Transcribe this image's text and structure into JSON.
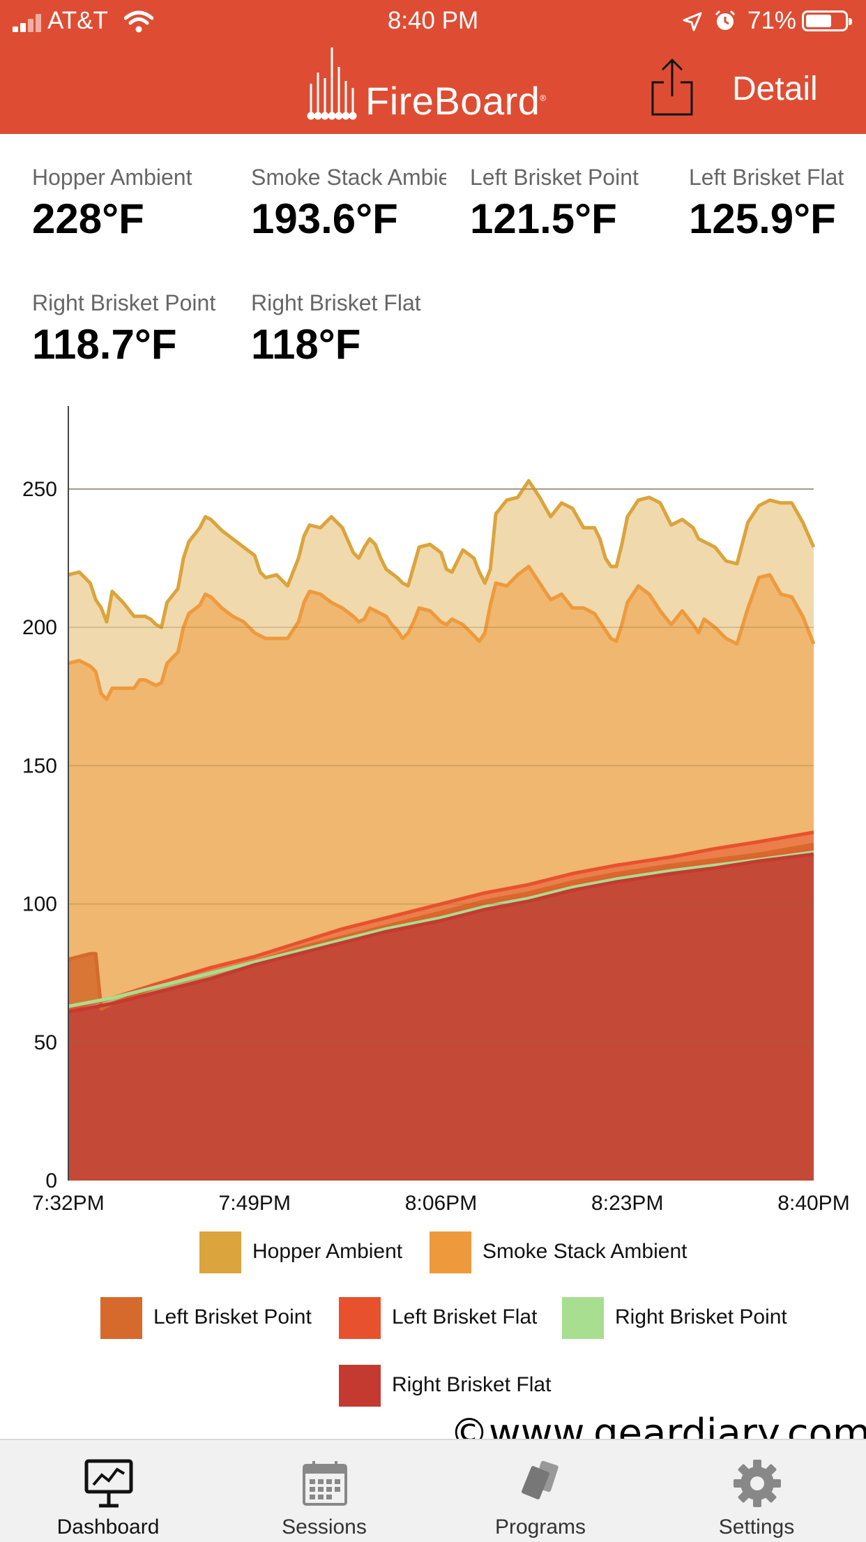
{
  "status_bar": {
    "carrier": "AT&T",
    "time": "8:40 PM",
    "battery": "71%"
  },
  "header": {
    "brand": "FireBoard",
    "detail_label": "Detail"
  },
  "readings": [
    {
      "name": "Hopper Ambient",
      "value": "228°F"
    },
    {
      "name": "Smoke Stack Ambient",
      "value": "193.6°F"
    },
    {
      "name": "Left Brisket Point",
      "value": "121.5°F"
    },
    {
      "name": "Left Brisket Flat",
      "value": "125.9°F"
    },
    {
      "name": "Right Brisket Point",
      "value": "118.7°F"
    },
    {
      "name": "Right Brisket Flat",
      "value": "118°F"
    }
  ],
  "chart_data": {
    "type": "area",
    "ylim": [
      0,
      280
    ],
    "yticks": [
      "0",
      "50",
      "100",
      "150",
      "200",
      "250"
    ],
    "x_labels": [
      "7:32PM",
      "7:49PM",
      "8:06PM",
      "8:23PM",
      "8:40PM"
    ],
    "x_range_minutes": [
      0,
      68
    ],
    "legend_placement": "bottom",
    "series": [
      {
        "name": "Hopper Ambient",
        "color": "#dba43c",
        "values": [
          [
            0,
            219
          ],
          [
            1,
            220
          ],
          [
            2,
            216
          ],
          [
            2.5,
            210
          ],
          [
            3,
            207
          ],
          [
            3.5,
            202
          ],
          [
            4,
            213
          ],
          [
            5,
            209
          ],
          [
            6,
            204
          ],
          [
            7,
            204
          ],
          [
            7.5,
            203
          ],
          [
            8,
            201
          ],
          [
            8.5,
            200
          ],
          [
            9,
            209
          ],
          [
            10,
            214
          ],
          [
            10.5,
            225
          ],
          [
            11,
            231
          ],
          [
            12,
            236
          ],
          [
            12.5,
            240
          ],
          [
            13,
            239
          ],
          [
            14,
            235
          ],
          [
            15,
            232
          ],
          [
            16,
            229
          ],
          [
            17,
            226
          ],
          [
            17.5,
            220
          ],
          [
            18,
            218
          ],
          [
            19,
            219
          ],
          [
            20,
            215
          ],
          [
            21,
            225
          ],
          [
            21.5,
            233
          ],
          [
            22,
            237
          ],
          [
            23,
            236
          ],
          [
            23.5,
            238
          ],
          [
            24,
            240
          ],
          [
            25,
            236
          ],
          [
            26,
            227
          ],
          [
            26.5,
            225
          ],
          [
            27,
            229
          ],
          [
            27.5,
            232
          ],
          [
            28,
            230
          ],
          [
            28.5,
            225
          ],
          [
            29,
            221
          ],
          [
            30,
            218
          ],
          [
            30.5,
            216
          ],
          [
            31,
            215
          ],
          [
            31.5,
            222
          ],
          [
            32,
            229
          ],
          [
            33,
            230
          ],
          [
            34,
            227
          ],
          [
            34.5,
            221
          ],
          [
            35,
            220
          ],
          [
            35.5,
            224
          ],
          [
            36,
            228
          ],
          [
            37,
            225
          ],
          [
            37.5,
            220
          ],
          [
            38,
            216
          ],
          [
            38.5,
            221
          ],
          [
            39,
            241
          ],
          [
            40,
            246
          ],
          [
            41,
            247
          ],
          [
            42,
            253
          ],
          [
            43,
            247
          ],
          [
            44,
            240
          ],
          [
            45,
            245
          ],
          [
            46,
            243
          ],
          [
            47,
            236
          ],
          [
            48,
            236
          ],
          [
            48.5,
            232
          ],
          [
            49,
            225
          ],
          [
            49.5,
            222
          ],
          [
            50,
            222
          ],
          [
            50.5,
            230
          ],
          [
            51,
            240
          ],
          [
            52,
            246
          ],
          [
            53,
            247
          ],
          [
            54,
            245
          ],
          [
            55,
            237
          ],
          [
            56,
            239
          ],
          [
            57,
            236
          ],
          [
            57.5,
            232
          ],
          [
            58,
            231
          ],
          [
            59,
            229
          ],
          [
            60,
            224
          ],
          [
            61,
            223
          ],
          [
            62,
            238
          ],
          [
            63,
            244
          ],
          [
            64,
            246
          ],
          [
            65,
            245
          ],
          [
            66,
            245
          ],
          [
            67,
            238
          ],
          [
            68,
            229
          ]
        ]
      },
      {
        "name": "Smoke Stack Ambient",
        "color": "#ee9a3c",
        "values": [
          [
            0,
            187
          ],
          [
            1,
            188
          ],
          [
            2,
            186
          ],
          [
            2.5,
            184
          ],
          [
            3,
            176
          ],
          [
            3.5,
            174
          ],
          [
            4,
            178
          ],
          [
            5,
            178
          ],
          [
            6,
            178
          ],
          [
            6.5,
            181
          ],
          [
            7,
            181
          ],
          [
            8,
            179
          ],
          [
            8.5,
            180
          ],
          [
            9,
            187
          ],
          [
            10,
            191
          ],
          [
            10.5,
            200
          ],
          [
            11,
            205
          ],
          [
            12,
            208
          ],
          [
            12.5,
            212
          ],
          [
            13,
            211
          ],
          [
            14,
            207
          ],
          [
            15,
            204
          ],
          [
            16,
            202
          ],
          [
            17,
            198
          ],
          [
            18,
            196
          ],
          [
            19,
            196
          ],
          [
            20,
            196
          ],
          [
            21,
            202
          ],
          [
            21.5,
            209
          ],
          [
            22,
            213
          ],
          [
            23,
            212
          ],
          [
            24,
            209
          ],
          [
            25,
            207
          ],
          [
            26,
            204
          ],
          [
            26.5,
            202
          ],
          [
            27,
            203
          ],
          [
            27.5,
            207
          ],
          [
            28,
            206
          ],
          [
            29,
            204
          ],
          [
            29.5,
            201
          ],
          [
            30,
            199
          ],
          [
            30.5,
            196
          ],
          [
            31,
            198
          ],
          [
            31.5,
            202
          ],
          [
            32,
            207
          ],
          [
            33,
            206
          ],
          [
            34,
            202
          ],
          [
            34.5,
            201
          ],
          [
            35,
            203
          ],
          [
            36,
            201
          ],
          [
            37,
            197
          ],
          [
            37.5,
            195
          ],
          [
            38,
            198
          ],
          [
            38.5,
            208
          ],
          [
            39,
            216
          ],
          [
            40,
            215
          ],
          [
            41,
            219
          ],
          [
            42,
            222
          ],
          [
            43,
            216
          ],
          [
            44,
            210
          ],
          [
            45,
            212
          ],
          [
            46,
            207
          ],
          [
            47,
            207
          ],
          [
            48,
            205
          ],
          [
            48.5,
            202
          ],
          [
            49,
            199
          ],
          [
            49.5,
            196
          ],
          [
            50,
            195
          ],
          [
            50.5,
            201
          ],
          [
            51,
            209
          ],
          [
            52,
            215
          ],
          [
            53,
            212
          ],
          [
            54,
            206
          ],
          [
            55,
            201
          ],
          [
            56,
            206
          ],
          [
            57,
            201
          ],
          [
            57.5,
            198
          ],
          [
            58,
            203
          ],
          [
            59,
            200
          ],
          [
            60,
            196
          ],
          [
            61,
            194
          ],
          [
            62,
            207
          ],
          [
            63,
            218
          ],
          [
            64,
            219
          ],
          [
            65,
            212
          ],
          [
            66,
            211
          ],
          [
            67,
            204
          ],
          [
            68,
            194
          ]
        ]
      },
      {
        "name": "Left Brisket Point",
        "color": "#d56a2c",
        "values": [
          [
            0,
            80
          ],
          [
            1,
            81
          ],
          [
            2,
            82
          ],
          [
            2.5,
            82
          ],
          [
            3,
            62
          ],
          [
            4,
            64
          ],
          [
            8,
            70
          ],
          [
            13,
            75
          ],
          [
            17,
            79
          ],
          [
            21,
            84
          ],
          [
            25,
            88
          ],
          [
            29,
            92
          ],
          [
            34,
            97
          ],
          [
            38,
            101
          ],
          [
            42,
            104
          ],
          [
            46,
            108
          ],
          [
            50,
            111
          ],
          [
            55,
            114
          ],
          [
            59,
            116
          ],
          [
            63,
            118
          ],
          [
            68,
            121.5
          ]
        ]
      },
      {
        "name": "Left Brisket Flat",
        "color": "#e8512d",
        "values": [
          [
            0,
            62
          ],
          [
            4,
            66
          ],
          [
            8,
            71
          ],
          [
            13,
            77
          ],
          [
            17,
            81
          ],
          [
            21,
            86
          ],
          [
            25,
            91
          ],
          [
            29,
            95
          ],
          [
            34,
            100
          ],
          [
            38,
            104
          ],
          [
            42,
            107
          ],
          [
            46,
            111
          ],
          [
            50,
            114
          ],
          [
            55,
            117
          ],
          [
            59,
            120
          ],
          [
            63,
            122.5
          ],
          [
            68,
            125.9
          ]
        ]
      },
      {
        "name": "Right Brisket Point",
        "color": "#a8de90",
        "values": [
          [
            0,
            63
          ],
          [
            4,
            66
          ],
          [
            8,
            70
          ],
          [
            13,
            75
          ],
          [
            17,
            79
          ],
          [
            21,
            83
          ],
          [
            25,
            87
          ],
          [
            29,
            91
          ],
          [
            34,
            95
          ],
          [
            38,
            99
          ],
          [
            42,
            102
          ],
          [
            46,
            106
          ],
          [
            50,
            109
          ],
          [
            55,
            112
          ],
          [
            59,
            114
          ],
          [
            63,
            116
          ],
          [
            68,
            118.7
          ]
        ]
      },
      {
        "name": "Right Brisket Flat",
        "color": "#c53a30",
        "values": [
          [
            0,
            61
          ],
          [
            4,
            64
          ],
          [
            8,
            68
          ],
          [
            13,
            73
          ],
          [
            17,
            78
          ],
          [
            21,
            82
          ],
          [
            25,
            86
          ],
          [
            29,
            90
          ],
          [
            34,
            94
          ],
          [
            38,
            98
          ],
          [
            42,
            101
          ],
          [
            46,
            105
          ],
          [
            50,
            108
          ],
          [
            55,
            111
          ],
          [
            59,
            113
          ],
          [
            63,
            115.5
          ],
          [
            68,
            118
          ]
        ]
      }
    ]
  },
  "legend": [
    {
      "label": "Hopper Ambient",
      "color": "#dba43c"
    },
    {
      "label": "Smoke Stack Ambient",
      "color": "#ee9a3c"
    },
    {
      "label": "Left Brisket Point",
      "color": "#d56a2c"
    },
    {
      "label": "Left Brisket Flat",
      "color": "#e8512d"
    },
    {
      "label": "Right Brisket Point",
      "color": "#a8de90"
    },
    {
      "label": "Right Brisket Flat",
      "color": "#c53a30"
    }
  ],
  "watermark": "©www.geardiary.com",
  "tabs": [
    {
      "label": "Dashboard",
      "icon": "dashboard-icon",
      "active": true
    },
    {
      "label": "Sessions",
      "icon": "calendar-icon",
      "active": false
    },
    {
      "label": "Programs",
      "icon": "programs-icon",
      "active": false
    },
    {
      "label": "Settings",
      "icon": "gear-icon",
      "active": false
    }
  ]
}
